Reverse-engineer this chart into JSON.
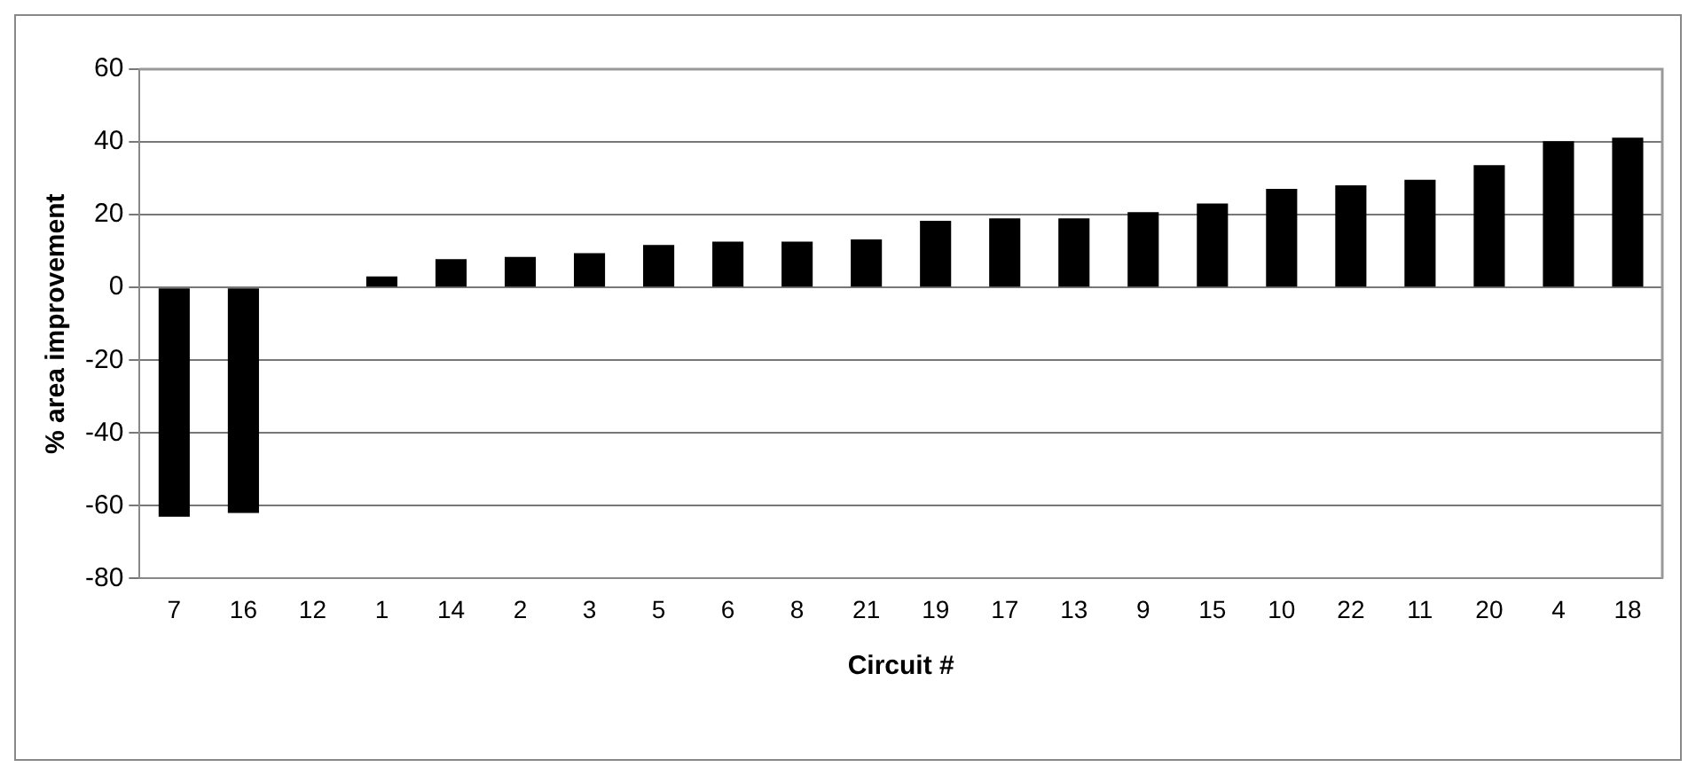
{
  "chart_data": {
    "type": "bar",
    "xlabel": "Circuit #",
    "ylabel": "% area improvement",
    "categories": [
      "7",
      "16",
      "12",
      "1",
      "14",
      "2",
      "3",
      "5",
      "6",
      "8",
      "21",
      "19",
      "17",
      "13",
      "9",
      "15",
      "10",
      "22",
      "11",
      "20",
      "4",
      "18"
    ],
    "values": [
      -63,
      -62,
      0,
      3,
      7.8,
      8.4,
      9.4,
      11.7,
      12.6,
      12.6,
      13.2,
      18.3,
      19,
      19,
      20.7,
      23.1,
      27.1,
      28.1,
      29.6,
      33.6,
      40.2,
      41.2
    ],
    "color": "#000000",
    "ylim": [
      -80,
      60
    ],
    "yticks": [
      -80,
      -60,
      -40,
      -20,
      0,
      20,
      40,
      60
    ],
    "grid": "y",
    "legend": false
  }
}
